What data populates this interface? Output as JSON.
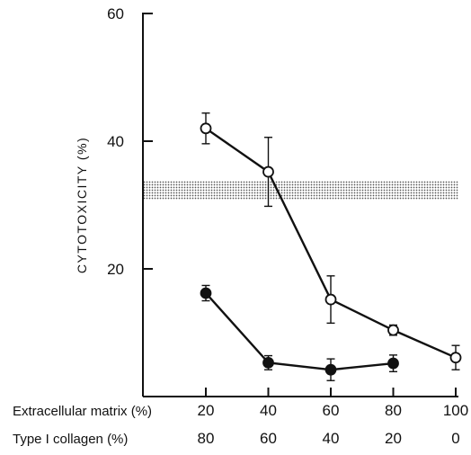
{
  "chart_data": {
    "type": "line",
    "title": "",
    "ylabel": "CYTOTOXICITY (%)",
    "xlabel": "",
    "ylim": [
      0,
      60
    ],
    "xlim": [
      20,
      100
    ],
    "y_ticks": [
      "20",
      "40",
      "60"
    ],
    "x_rows": [
      {
        "name": "Extracellular matrix (%)",
        "x": [
          20,
          40,
          60,
          80,
          100
        ],
        "labels": [
          "20",
          "40",
          "60",
          "80",
          "100"
        ]
      },
      {
        "name": "Type I collagen (%)",
        "x": [
          20,
          40,
          60,
          80,
          100
        ],
        "labels": [
          "80",
          "60",
          "40",
          "20",
          "0"
        ]
      }
    ],
    "series": [
      {
        "marker": "open-circle",
        "x": [
          20,
          40,
          60,
          80,
          100
        ],
        "y": [
          42,
          35.2,
          15.2,
          10.4,
          6.1
        ],
        "err": [
          2.4,
          5.4,
          3.7,
          0.8,
          1.9
        ]
      },
      {
        "marker": "filled-circle",
        "x": [
          20,
          40,
          60,
          80
        ],
        "y": [
          16.2,
          5.3,
          4.2,
          5.2
        ],
        "err": [
          1.2,
          1.1,
          1.7,
          1.3
        ]
      }
    ],
    "reference_band": {
      "y_low": 30.9,
      "y_high": 33.8,
      "pattern": "dotted"
    },
    "grid": false,
    "legend": "none"
  }
}
